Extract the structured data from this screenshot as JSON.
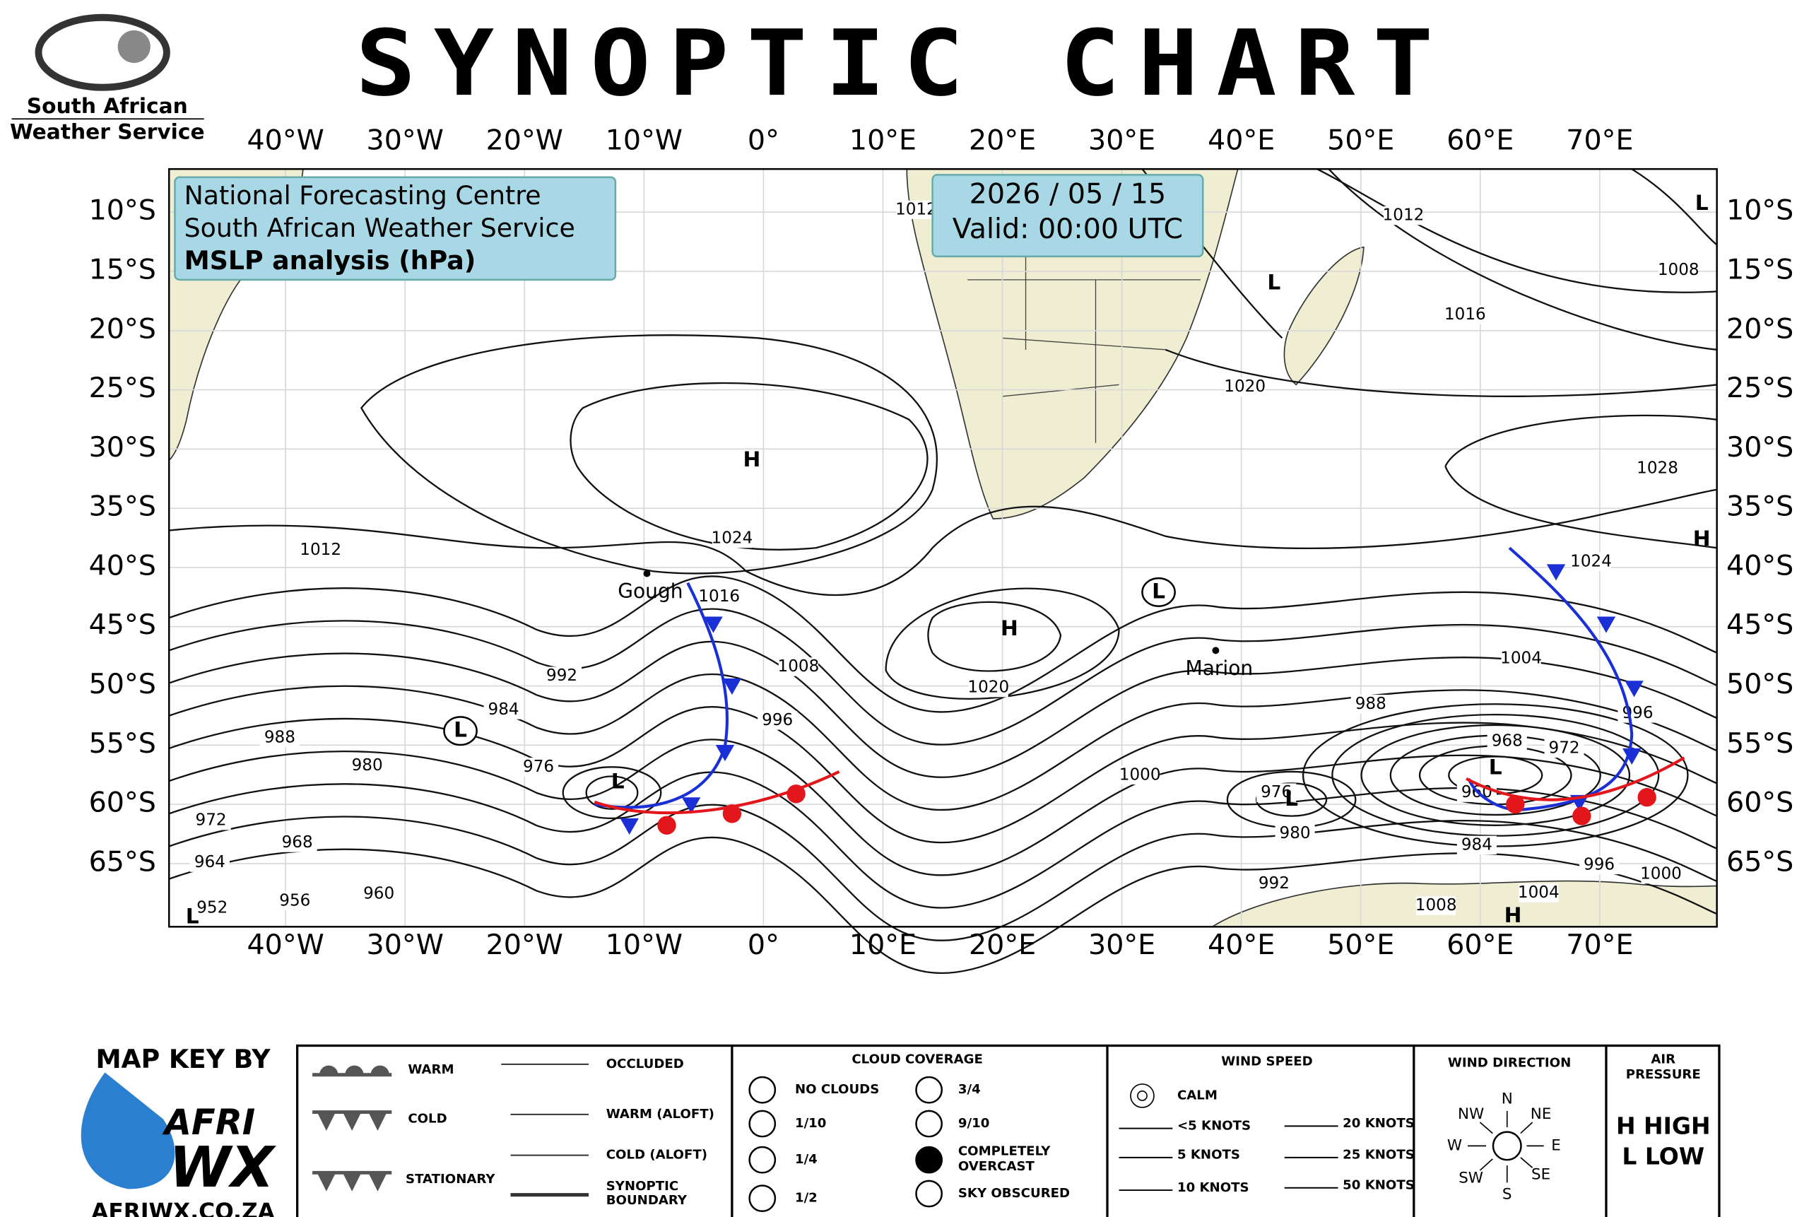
{
  "header": {
    "logo": [
      "South African",
      "Weather Service"
    ],
    "title": "SYNOPTIC CHART"
  },
  "map": {
    "lon_labels": [
      "40°W",
      "30°W",
      "20°W",
      "10°W",
      "0°",
      "10°E",
      "20°E",
      "30°E",
      "40°E",
      "50°E",
      "60°E",
      "70°E"
    ],
    "lat_labels": [
      "10°S",
      "15°S",
      "20°S",
      "25°S",
      "30°S",
      "35°S",
      "40°S",
      "45°S",
      "50°S",
      "55°S",
      "60°S",
      "65°S"
    ],
    "info_box": [
      "National Forecasting Centre",
      "South African Weather Service",
      "MSLP analysis (hPa)"
    ],
    "date_box": [
      "2026 / 05 / 15",
      "Valid: 00:00 UTC"
    ],
    "isobar_labels": [
      "1012",
      "1008",
      "1016",
      "1020",
      "1028",
      "1024",
      "1024",
      "1012",
      "1016",
      "1008",
      "992",
      "996",
      "984",
      "988",
      "980",
      "976",
      "972",
      "968",
      "964",
      "956",
      "952",
      "960",
      "1020",
      "1000",
      "1004",
      "988",
      "996",
      "968",
      "972",
      "976",
      "980",
      "984",
      "960",
      "992",
      "996",
      "1000",
      "1004",
      "1008",
      "1012"
    ],
    "systems": [
      "H",
      "H",
      "H",
      "H",
      "L",
      "L",
      "L",
      "L",
      "L",
      "L",
      "L",
      "L"
    ],
    "places": [
      "Gough",
      "Marion"
    ]
  },
  "key": {
    "credit": "MAP KEY BY",
    "brand": [
      "AFRI",
      "WX"
    ],
    "site": "AFRIWX.CO.ZA",
    "fronts": [
      "WARM",
      "COLD",
      "STATIONARY",
      "OCCLUDED",
      "WARM (ALOFT)",
      "COLD (ALOFT)",
      [
        "SYNOPTIC",
        "BOUNDARY"
      ]
    ],
    "cloud": {
      "title": "CLOUD COVERAGE",
      "items": [
        "NO CLOUDS",
        "1/10",
        "1/4",
        "1/2",
        "3/4",
        "9/10",
        [
          "COMPLETELY",
          "OVERCAST"
        ],
        "SKY OBSCURED"
      ]
    },
    "wind_speed": {
      "title": "WIND SPEED",
      "items": [
        "CALM",
        "<5 KNOTS",
        "5 KNOTS",
        "10 KNOTS",
        "20 KNOTS",
        "25 KNOTS",
        "50 KNOTS"
      ]
    },
    "wind_direction": {
      "title": "WIND DIRECTION",
      "points": [
        "N",
        "NE",
        "E",
        "SE",
        "S",
        "SW",
        "W",
        "NW"
      ]
    },
    "air_pressure": {
      "title": [
        "AIR",
        "PRESSURE"
      ],
      "items": [
        "H HIGH",
        "L LOW"
      ]
    }
  }
}
